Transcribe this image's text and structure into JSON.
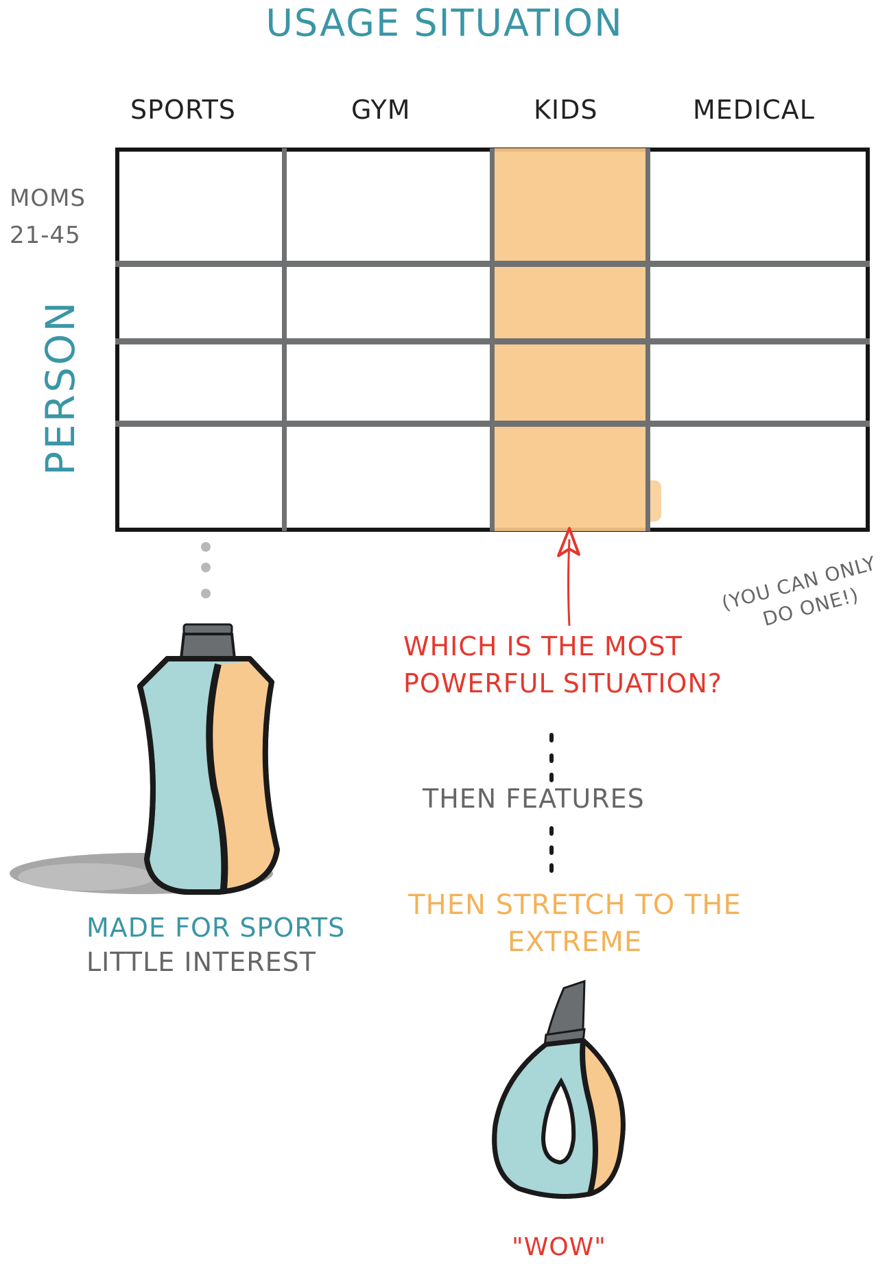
{
  "title": "USAGE SITUATION",
  "columns": [
    "SPORTS",
    "GYM",
    "KIDS",
    "MEDICAL"
  ],
  "row_label_line1": "MOMS",
  "row_label_line2": "21-45",
  "person_axis": "PERSON",
  "highlighted_column": "KIDS",
  "question_line1": "WHICH IS THE MOST",
  "question_line2": "POWERFUL SITUATION?",
  "aside_line1": "(YOU CAN ONLY",
  "aside_line2": "DO ONE!)",
  "features": "THEN FEATURES",
  "stretch_line1": "THEN STRETCH TO THE",
  "stretch_line2": "EXTREME",
  "made_for": "MADE FOR SPORTS",
  "interest": "LITTLE INTEREST",
  "wow": "\"WOW\"",
  "colors": {
    "teal": "#3a96a6",
    "red": "#e5372d",
    "orange": "#f3b258",
    "highlight": "#f8c88a",
    "grey": "#666666",
    "bottle_teal": "#a9d6d6",
    "bottle_orange": "#f8c98e"
  },
  "icons": {
    "sports_bottle": "sports-bottle-illustration",
    "wow_bottle": "wow-bottle-illustration",
    "arrow": "arrow-up-icon"
  }
}
